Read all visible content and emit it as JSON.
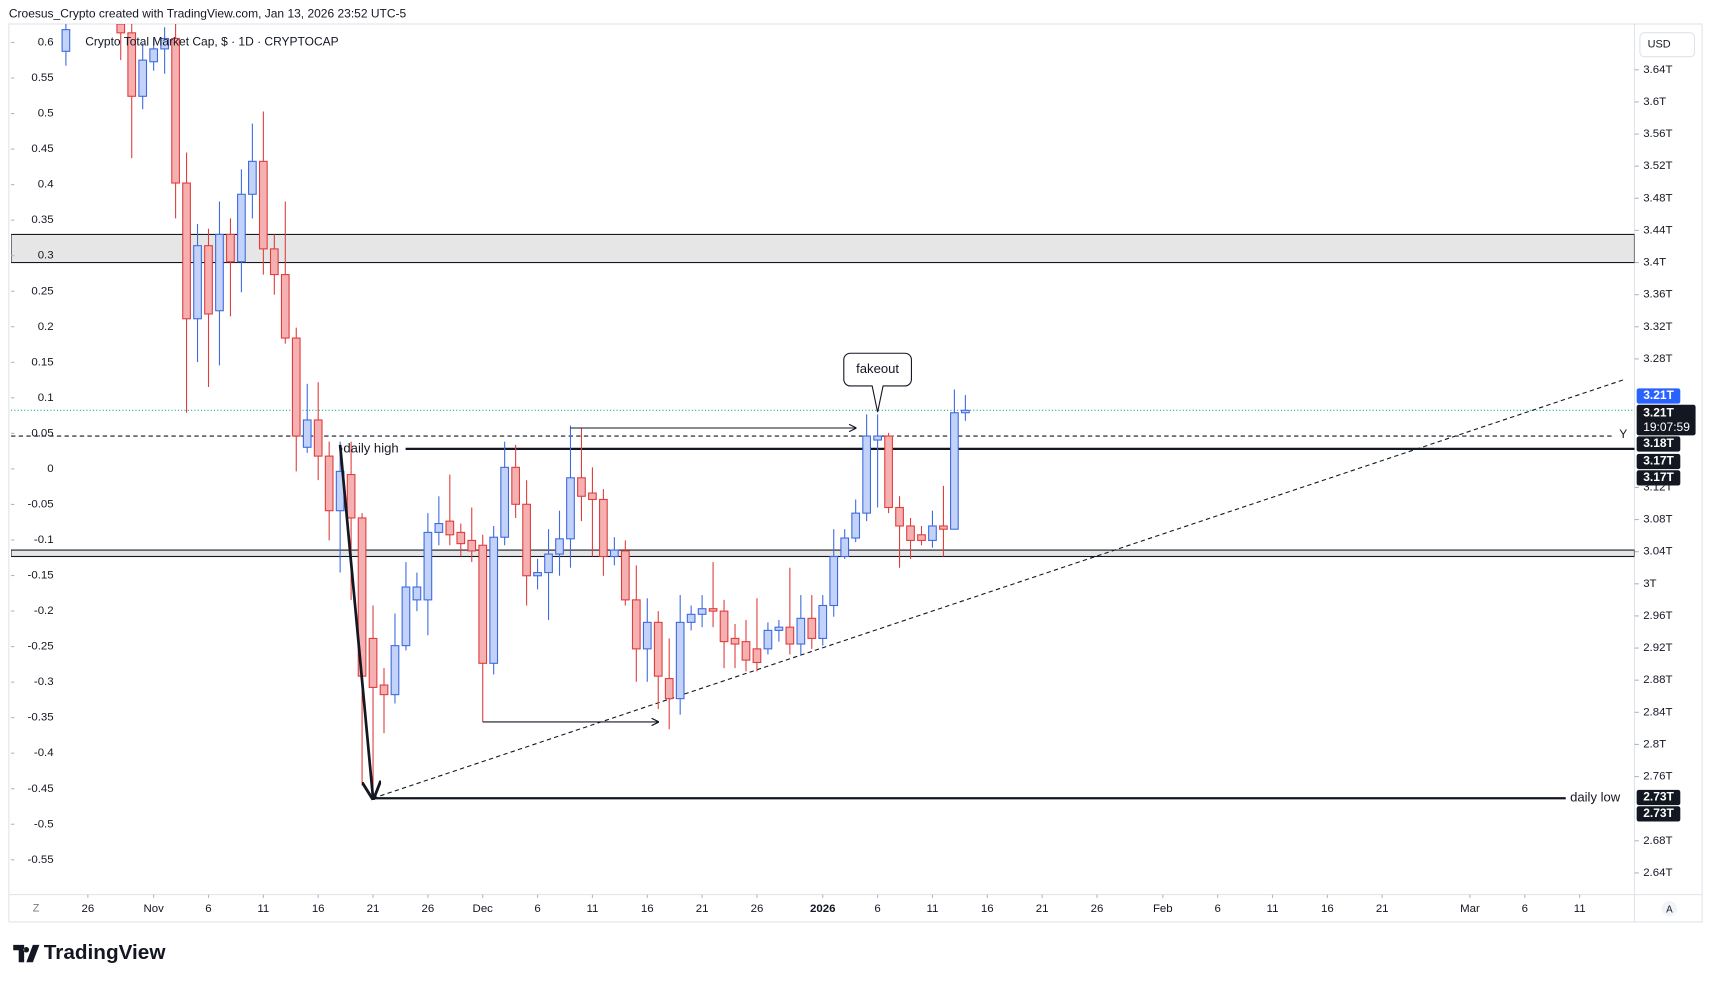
{
  "chart_data": {
    "type": "candlestick",
    "header": "Croesus_Crypto created with TradingView.com, Jan 13, 2026 23:52 UTC-5",
    "title": "Crypto Total Market Cap, $ · 1D · CRYPTOCAP",
    "currency": "USD",
    "brand": "TradingView",
    "controls": [
      "Z",
      "A"
    ],
    "up_color": "#3d6ae0",
    "up_fill": "#c3d2f8",
    "down_color": "#e03c3c",
    "down_fill": "#f5b1b1",
    "last_price_color": "#26a69a",
    "grid": false,
    "x": [
      "2025-10-24",
      "2025-10-29",
      "2025-10-30",
      "2025-10-31",
      "2025-11-01",
      "2025-11-02",
      "2025-11-03",
      "2025-11-04",
      "2025-11-05",
      "2025-11-06",
      "2025-11-07",
      "2025-11-08",
      "2025-11-09",
      "2025-11-10",
      "2025-11-11",
      "2025-11-12",
      "2025-11-13",
      "2025-11-14",
      "2025-11-15",
      "2025-11-16",
      "2025-11-17",
      "2025-11-18",
      "2025-11-19",
      "2025-11-20",
      "2025-11-21",
      "2025-11-22",
      "2025-11-23",
      "2025-11-24",
      "2025-11-25",
      "2025-11-26",
      "2025-11-27",
      "2025-11-28",
      "2025-11-29",
      "2025-11-30",
      "2025-12-01",
      "2025-12-02",
      "2025-12-03",
      "2025-12-04",
      "2025-12-05",
      "2025-12-06",
      "2025-12-07",
      "2025-12-08",
      "2025-12-09",
      "2025-12-10",
      "2025-12-11",
      "2025-12-12",
      "2025-12-13",
      "2025-12-14",
      "2025-12-15",
      "2025-12-16",
      "2025-12-17",
      "2025-12-18",
      "2025-12-19",
      "2025-12-20",
      "2025-12-21",
      "2025-12-22",
      "2025-12-23",
      "2025-12-24",
      "2025-12-25",
      "2025-12-26",
      "2025-12-27",
      "2025-12-28",
      "2025-12-29",
      "2025-12-30",
      "2025-12-31",
      "2026-01-01",
      "2026-01-02",
      "2026-01-03",
      "2026-01-04",
      "2026-01-05",
      "2026-01-06",
      "2026-01-07",
      "2026-01-08",
      "2026-01-09",
      "2026-01-10",
      "2026-01-11",
      "2026-01-12",
      "2026-01-13",
      "2026-01-14"
    ],
    "open": [
      3.663,
      3.697,
      3.686,
      3.607,
      3.65,
      3.666,
      3.679,
      3.499,
      3.33,
      3.421,
      3.34,
      3.435,
      3.401,
      3.485,
      3.526,
      3.417,
      3.385,
      3.306,
      3.17,
      3.204,
      3.159,
      3.091,
      3.136,
      3.082,
      2.932,
      2.874,
      2.862,
      2.923,
      2.98,
      2.98,
      3.064,
      3.078,
      3.064,
      3.054,
      3.048,
      2.901,
      3.058,
      3.145,
      3.099,
      3.01,
      3.014,
      3.037,
      3.056,
      3.132,
      3.113,
      3.105,
      3.034,
      3.041,
      2.98,
      2.919,
      2.952,
      2.882,
      2.857,
      2.952,
      2.962,
      2.969,
      2.966,
      2.932,
      2.928,
      2.919,
      2.919,
      2.942,
      2.946,
      2.925,
      2.957,
      2.932,
      2.973,
      3.034,
      3.057,
      3.088,
      3.179,
      3.184,
      3.095,
      3.072,
      3.061,
      3.054,
      3.072,
      3.068,
      3.213
    ],
    "high": [
      3.697,
      3.7,
      3.697,
      3.673,
      3.679,
      3.693,
      3.697,
      3.537,
      3.448,
      3.442,
      3.476,
      3.455,
      3.516,
      3.573,
      3.588,
      3.435,
      3.476,
      3.319,
      3.249,
      3.251,
      3.177,
      3.177,
      3.177,
      3.088,
      2.973,
      2.895,
      2.963,
      3.027,
      3.014,
      3.088,
      3.109,
      3.136,
      3.075,
      3.095,
      3.061,
      3.072,
      3.177,
      3.173,
      3.129,
      3.031,
      3.068,
      3.091,
      3.197,
      3.194,
      3.145,
      3.118,
      3.058,
      3.054,
      3.023,
      2.982,
      2.966,
      2.932,
      2.986,
      2.973,
      2.986,
      3.027,
      2.98,
      2.95,
      2.955,
      2.982,
      2.952,
      2.955,
      3.02,
      2.986,
      2.986,
      2.986,
      3.068,
      3.068,
      3.105,
      3.211,
      3.211,
      3.188,
      3.109,
      3.082,
      3.072,
      3.091,
      3.122,
      3.242,
      3.235
    ],
    "low": [
      3.645,
      3.652,
      3.53,
      3.591,
      3.639,
      3.635,
      3.455,
      3.213,
      3.276,
      3.245,
      3.272,
      3.333,
      3.363,
      3.455,
      3.385,
      3.36,
      3.299,
      3.14,
      3.163,
      3.129,
      3.054,
      3.014,
      2.98,
      2.749,
      2.732,
      2.814,
      2.851,
      2.917,
      2.966,
      2.936,
      3.048,
      3.048,
      3.034,
      3.027,
      2.828,
      2.887,
      3.048,
      3.082,
      2.973,
      2.993,
      2.955,
      3.01,
      3.02,
      3.078,
      3.034,
      3.01,
      3.023,
      2.973,
      2.878,
      2.878,
      2.844,
      2.819,
      2.837,
      2.942,
      2.946,
      2.946,
      2.895,
      2.895,
      2.891,
      2.891,
      2.912,
      2.928,
      2.912,
      2.912,
      2.919,
      2.923,
      2.959,
      3.031,
      3.052,
      3.078,
      3.095,
      3.088,
      3.02,
      3.031,
      3.048,
      3.045,
      3.034,
      3.068,
      3.203
    ],
    "close": [
      3.69,
      3.686,
      3.607,
      3.652,
      3.666,
      3.679,
      3.499,
      3.33,
      3.421,
      3.336,
      3.435,
      3.401,
      3.485,
      3.526,
      3.417,
      3.385,
      3.306,
      3.184,
      3.204,
      3.159,
      3.091,
      3.14,
      3.082,
      2.885,
      2.871,
      2.862,
      2.923,
      2.996,
      2.996,
      3.064,
      3.075,
      3.061,
      3.05,
      3.041,
      2.901,
      3.058,
      3.145,
      3.099,
      3.01,
      3.014,
      3.037,
      3.056,
      3.132,
      3.109,
      3.105,
      3.034,
      3.042,
      2.98,
      2.919,
      2.952,
      2.885,
      2.857,
      2.952,
      2.962,
      2.969,
      2.966,
      2.928,
      2.925,
      2.905,
      2.902,
      2.942,
      2.946,
      2.925,
      2.957,
      2.932,
      2.973,
      3.034,
      3.057,
      3.088,
      3.184,
      3.184,
      3.095,
      3.072,
      3.054,
      3.054,
      3.072,
      3.068,
      3.213,
      3.216
    ],
    "xlim": [
      "2025-10-19",
      "2026-03-16"
    ],
    "xticks": [
      {
        "value": "2025-10-26",
        "label": "26"
      },
      {
        "value": "2025-11-01",
        "label": "Nov"
      },
      {
        "value": "2025-11-06",
        "label": "6"
      },
      {
        "value": "2025-11-11",
        "label": "11"
      },
      {
        "value": "2025-11-16",
        "label": "16"
      },
      {
        "value": "2025-11-21",
        "label": "21"
      },
      {
        "value": "2025-11-26",
        "label": "26"
      },
      {
        "value": "2025-12-01",
        "label": "Dec"
      },
      {
        "value": "2025-12-06",
        "label": "6"
      },
      {
        "value": "2025-12-11",
        "label": "11"
      },
      {
        "value": "2025-12-16",
        "label": "16"
      },
      {
        "value": "2025-12-21",
        "label": "21"
      },
      {
        "value": "2025-12-26",
        "label": "26"
      },
      {
        "value": "2026-01-01",
        "label": "2026"
      },
      {
        "value": "2026-01-06",
        "label": "6"
      },
      {
        "value": "2026-01-11",
        "label": "11"
      },
      {
        "value": "2026-01-16",
        "label": "16"
      },
      {
        "value": "2026-01-21",
        "label": "21"
      },
      {
        "value": "2026-01-26",
        "label": "26"
      },
      {
        "value": "2026-02-01",
        "label": "Feb"
      },
      {
        "value": "2026-02-06",
        "label": "6"
      },
      {
        "value": "2026-02-11",
        "label": "11"
      },
      {
        "value": "2026-02-16",
        "label": "16"
      },
      {
        "value": "2026-02-21",
        "label": "21"
      },
      {
        "value": "2026-03-01",
        "label": "Mar"
      },
      {
        "value": "2026-03-06",
        "label": "6"
      },
      {
        "value": "2026-03-11",
        "label": "11"
      }
    ],
    "ylim": [
      2.613,
      3.697
    ],
    "yticks": [
      {
        "value": 3.64,
        "label": "3.64T"
      },
      {
        "value": 3.6,
        "label": "3.6T"
      },
      {
        "value": 3.56,
        "label": "3.56T"
      },
      {
        "value": 3.52,
        "label": "3.52T"
      },
      {
        "value": 3.48,
        "label": "3.48T"
      },
      {
        "value": 3.44,
        "label": "3.44T"
      },
      {
        "value": 3.4,
        "label": "3.4T"
      },
      {
        "value": 3.36,
        "label": "3.36T"
      },
      {
        "value": 3.32,
        "label": "3.32T"
      },
      {
        "value": 3.28,
        "label": "3.28T"
      },
      {
        "value": 3.12,
        "label": "3.12T"
      },
      {
        "value": 3.08,
        "label": "3.08T"
      },
      {
        "value": 3.04,
        "label": "3.04T"
      },
      {
        "value": 3,
        "label": "3T"
      },
      {
        "value": 2.96,
        "label": "2.96T"
      },
      {
        "value": 2.92,
        "label": "2.92T"
      },
      {
        "value": 2.88,
        "label": "2.88T"
      },
      {
        "value": 2.84,
        "label": "2.84T"
      },
      {
        "value": 2.8,
        "label": "2.8T"
      },
      {
        "value": 2.76,
        "label": "2.76T"
      },
      {
        "value": 2.68,
        "label": "2.68T"
      },
      {
        "value": 2.64,
        "label": "2.64T"
      }
    ],
    "y2lim": [
      -0.599,
      0.626
    ],
    "y2ticks": [
      0.6,
      0.55,
      0.5,
      0.45,
      0.4,
      0.35,
      0.3,
      0.25,
      0.2,
      0.15,
      0.1,
      0.05,
      0,
      -0.05,
      -0.1,
      -0.15,
      -0.2,
      -0.25,
      -0.3,
      -0.35,
      -0.4,
      -0.45,
      -0.5,
      -0.55
    ],
    "price_labels": [
      {
        "label": "3.21T",
        "color": "#2962ff"
      },
      {
        "label": "3.21T",
        "color": "#131722"
      },
      {
        "label": "19:07:59",
        "color": "#131722"
      },
      {
        "label": "3.18T",
        "color": "#131722"
      },
      {
        "label": "3.17T",
        "color": "#131722"
      },
      {
        "label": "3.17T",
        "color": "#131722"
      },
      {
        "label": "2.73T",
        "color": "#131722"
      },
      {
        "label": "2.73T",
        "color": "#131722"
      }
    ],
    "annotations": {
      "zones": [
        {
          "from": 3.4,
          "to": 3.435
        },
        {
          "from": 3.034,
          "to": 3.042
        }
      ],
      "levels": [
        {
          "label": "daily high",
          "value": 3.168,
          "from": "2025-11-18"
        },
        {
          "label": "daily low",
          "value": 2.733,
          "from": "2025-11-21"
        }
      ],
      "prev_close": {
        "label": "Y",
        "value": 3.184
      },
      "trendline": [
        {
          "date": "2025-11-21",
          "value": 2.733
        },
        {
          "date": "2026-03-15",
          "value": 3.254
        }
      ],
      "arrows": [
        [
          {
            "date": "2025-11-18",
            "value": 3.173
          },
          {
            "date": "2025-11-21",
            "value": 2.733
          }
        ],
        [
          {
            "date": "2025-12-01",
            "value": 2.828
          },
          {
            "date": "2025-12-17",
            "value": 2.828
          }
        ],
        [
          {
            "date": "2025-12-09",
            "value": 3.194
          },
          {
            "date": "2026-01-04",
            "value": 3.194
          }
        ]
      ],
      "callout": {
        "label": "fakeout",
        "date": "2026-01-06",
        "value": 3.211
      }
    }
  }
}
